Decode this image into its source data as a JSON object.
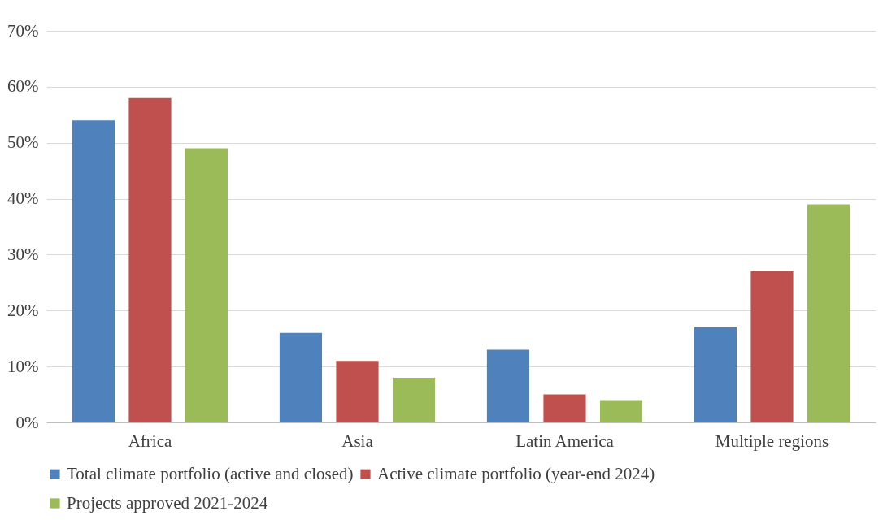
{
  "chart_data": {
    "type": "bar",
    "categories": [
      "Africa",
      "Asia",
      "Latin America",
      "Multiple regions"
    ],
    "series": [
      {
        "name": "Total climate portfolio (active and closed)",
        "color": "#4f81bd",
        "values": [
          54,
          16,
          13,
          17
        ]
      },
      {
        "name": "Active climate portfolio (year-end 2024)",
        "color": "#c0504d",
        "values": [
          58,
          11,
          5,
          27
        ]
      },
      {
        "name": "Projects approved 2021-2024",
        "color": "#9bbb59",
        "values": [
          49,
          8,
          4,
          39
        ]
      }
    ],
    "ylim": [
      0,
      70
    ],
    "yticks": [
      {
        "value": 0,
        "label": "0%"
      },
      {
        "value": 10,
        "label": "10%"
      },
      {
        "value": 20,
        "label": "20%"
      },
      {
        "value": 30,
        "label": "30%"
      },
      {
        "value": 40,
        "label": "40%"
      },
      {
        "value": 50,
        "label": "50%"
      },
      {
        "value": 60,
        "label": "60%"
      },
      {
        "value": 70,
        "label": "70%"
      }
    ],
    "grid": "y",
    "legend": "bottom"
  }
}
